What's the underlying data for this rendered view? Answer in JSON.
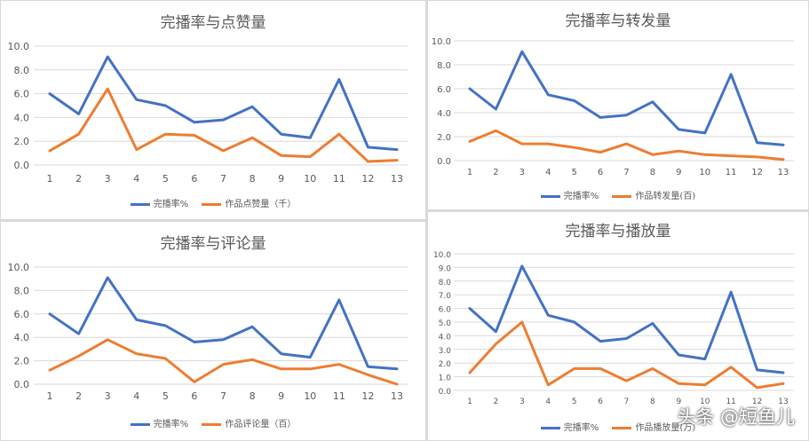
{
  "watermark": "头条 @短鱼儿",
  "colors": {
    "completion": "#4472c4",
    "metric": "#ed7d31",
    "grid": "#d9d9d9"
  },
  "chart_data": [
    {
      "type": "line",
      "title": "完播率与点赞量",
      "x": [
        1,
        2,
        3,
        4,
        5,
        6,
        7,
        8,
        9,
        10,
        11,
        12,
        13
      ],
      "ylim": [
        0,
        10
      ],
      "yticks": [
        "0.0",
        "2.0",
        "4.0",
        "6.0",
        "8.0",
        "10.0"
      ],
      "grid": true,
      "legend_position": "bottom",
      "series": [
        {
          "name": "完播率%",
          "values": [
            6.0,
            4.3,
            9.1,
            5.5,
            5.0,
            3.6,
            3.8,
            4.9,
            2.6,
            2.3,
            7.2,
            1.5,
            1.3
          ]
        },
        {
          "name": "作品点赞量（千）",
          "values": [
            1.2,
            2.6,
            6.4,
            1.3,
            2.6,
            2.5,
            1.2,
            2.3,
            0.8,
            0.7,
            2.6,
            0.3,
            0.4
          ]
        }
      ]
    },
    {
      "type": "line",
      "title": "完播率与转发量",
      "x": [
        1,
        2,
        3,
        4,
        5,
        6,
        7,
        8,
        9,
        10,
        11,
        12,
        13
      ],
      "ylim": [
        0,
        10
      ],
      "yticks": [
        "0.0",
        "2.0",
        "4.0",
        "6.0",
        "8.0",
        "10.0"
      ],
      "grid": true,
      "legend_position": "bottom",
      "series": [
        {
          "name": "完播率%",
          "values": [
            6.0,
            4.3,
            9.1,
            5.5,
            5.0,
            3.6,
            3.8,
            4.9,
            2.6,
            2.3,
            7.2,
            1.5,
            1.3
          ]
        },
        {
          "name": "作品转发量(百)",
          "values": [
            1.6,
            2.5,
            1.4,
            1.4,
            1.1,
            0.7,
            1.4,
            0.5,
            0.8,
            0.5,
            0.4,
            0.3,
            0.1
          ]
        }
      ]
    },
    {
      "type": "line",
      "title": "完播率与评论量",
      "x": [
        1,
        2,
        3,
        4,
        5,
        6,
        7,
        8,
        9,
        10,
        11,
        12,
        13
      ],
      "ylim": [
        0,
        10
      ],
      "yticks": [
        "0.0",
        "2.0",
        "4.0",
        "6.0",
        "8.0",
        "10.0"
      ],
      "grid": true,
      "legend_position": "bottom",
      "series": [
        {
          "name": "完播率%",
          "values": [
            6.0,
            4.3,
            9.1,
            5.5,
            5.0,
            3.6,
            3.8,
            4.9,
            2.6,
            2.3,
            7.2,
            1.5,
            1.3
          ]
        },
        {
          "name": "作品评论量（百）",
          "values": [
            1.2,
            2.4,
            3.8,
            2.6,
            2.2,
            0.2,
            1.7,
            2.1,
            1.3,
            1.3,
            1.7,
            0.8,
            0.0
          ]
        }
      ]
    },
    {
      "type": "line",
      "title": "完播率与播放量",
      "x": [
        1,
        2,
        3,
        4,
        5,
        6,
        7,
        8,
        9,
        10,
        11,
        12,
        13
      ],
      "ylim": [
        0,
        10
      ],
      "yticks": [
        "0.0",
        "1.0",
        "2.0",
        "3.0",
        "4.0",
        "5.0",
        "6.0",
        "7.0",
        "8.0",
        "9.0",
        "10.0"
      ],
      "grid": true,
      "legend_position": "bottom",
      "series": [
        {
          "name": "完播率%",
          "values": [
            6.0,
            4.3,
            9.1,
            5.5,
            5.0,
            3.6,
            3.8,
            4.9,
            2.6,
            2.3,
            7.2,
            1.5,
            1.3
          ]
        },
        {
          "name": "作品播放量(万)",
          "values": [
            1.3,
            3.4,
            5.0,
            0.4,
            1.6,
            1.6,
            0.7,
            1.6,
            0.5,
            0.4,
            1.7,
            0.2,
            0.5
          ]
        }
      ]
    }
  ]
}
